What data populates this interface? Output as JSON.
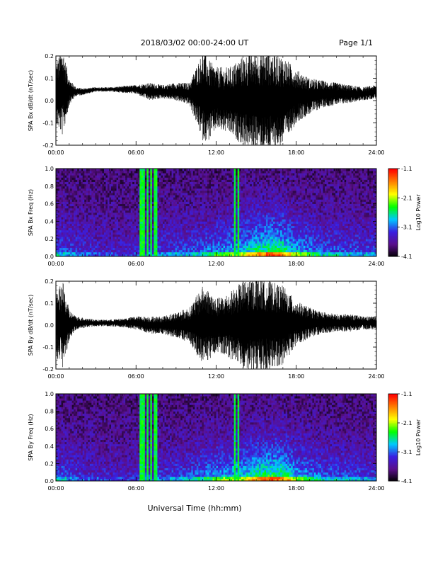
{
  "header": {
    "date_range": "2018/03/02  00:00-24:00 UT",
    "page": "Page 1/1"
  },
  "footer": {
    "xlabel": "Universal Time (hh:mm)"
  },
  "colors": {
    "trace": "#000000",
    "background": "#ffffff",
    "colormap": [
      "#000000",
      "#5a0f8a",
      "#3a1ee0",
      "#00c8ff",
      "#00ff00",
      "#ffff00",
      "#ff8000",
      "#ff0000"
    ]
  },
  "chart_data": [
    {
      "type": "line",
      "ylabel": "SPA Bx dB/dt (nT/sec)",
      "x_ticks": [
        "00:00",
        "06:00",
        "12:00",
        "18:00",
        "24:00"
      ],
      "y_ticks": [
        "-0.2",
        "-0.1",
        "0.0",
        "0.1",
        "0.2"
      ],
      "xlim": [
        0,
        24
      ],
      "ylim": [
        -0.2,
        0.2
      ],
      "series": [
        {
          "x_hours": [
            0,
            0.5,
            1,
            1.5,
            2,
            3,
            4,
            5,
            6,
            7,
            8,
            9,
            10,
            11,
            11.5,
            12,
            13,
            14,
            15,
            16,
            17,
            18,
            19,
            20,
            21,
            22,
            23,
            24
          ],
          "center": [
            0.03,
            0.04,
            0.04,
            0.04,
            0.04,
            0.05,
            0.05,
            0.05,
            0.05,
            0.04,
            0.04,
            0.04,
            0.03,
            0.02,
            0.0,
            0.01,
            0.0,
            0.0,
            0.0,
            0.0,
            0.0,
            0.02,
            0.02,
            0.03,
            0.03,
            0.03,
            0.03,
            0.04
          ],
          "amplitude": [
            0.14,
            0.2,
            0.06,
            0.02,
            0.015,
            0.01,
            0.01,
            0.015,
            0.02,
            0.04,
            0.03,
            0.04,
            0.05,
            0.2,
            0.18,
            0.14,
            0.15,
            0.2,
            0.22,
            0.22,
            0.2,
            0.12,
            0.08,
            0.06,
            0.05,
            0.04,
            0.03,
            0.03
          ]
        }
      ]
    },
    {
      "type": "heatmap",
      "ylabel": "SPA Bx Freq (Hz)",
      "x_ticks": [
        "00:00",
        "06:00",
        "12:00",
        "18:00",
        "24:00"
      ],
      "y_ticks": [
        "0.0",
        "0.2",
        "0.4",
        "0.6",
        "0.8",
        "1.0"
      ],
      "xlim": [
        0,
        24
      ],
      "ylim": [
        0,
        1.0
      ],
      "colorbar": {
        "label": "Log10 Power",
        "ticks": [
          "-1.1",
          "-2.1",
          "-3.1",
          "-4.1"
        ],
        "range": [
          -4.1,
          -1.1
        ]
      },
      "bright_bands_hours": [
        6.3,
        6.55,
        6.85,
        7.1,
        7.45,
        13.4,
        13.65
      ],
      "activity_hours": [
        0,
        2,
        4,
        6,
        8,
        10,
        11,
        12,
        13,
        14,
        15,
        16,
        17,
        18,
        19,
        20,
        22,
        24
      ],
      "activity_level": [
        0.35,
        0.2,
        0.15,
        0.15,
        0.25,
        0.3,
        0.35,
        0.45,
        0.5,
        0.6,
        0.75,
        0.85,
        0.8,
        0.55,
        0.45,
        0.35,
        0.3,
        0.25
      ]
    },
    {
      "type": "line",
      "ylabel": "SPA By dB/dt (nT/sec)",
      "x_ticks": [
        "00:00",
        "06:00",
        "12:00",
        "18:00",
        "24:00"
      ],
      "y_ticks": [
        "-0.2",
        "-0.1",
        "0.0",
        "0.1",
        "0.2"
      ],
      "xlim": [
        0,
        24
      ],
      "ylim": [
        -0.2,
        0.2
      ],
      "series": [
        {
          "x_hours": [
            0,
            0.5,
            1,
            1.5,
            2,
            3,
            4,
            5,
            6,
            7,
            8,
            9,
            10,
            11,
            11.5,
            12,
            13,
            14,
            15,
            16,
            17,
            18,
            19,
            20,
            21,
            22,
            23,
            24
          ],
          "center": [
            0.0,
            0.0,
            0.0,
            0.01,
            0.01,
            0.01,
            0.01,
            0.01,
            0.01,
            0.0,
            0.0,
            0.0,
            0.0,
            0.0,
            0.0,
            0.0,
            0.0,
            0.0,
            0.0,
            0.0,
            0.0,
            0.01,
            0.01,
            0.01,
            0.01,
            0.01,
            0.01,
            0.01
          ],
          "amplitude": [
            0.14,
            0.2,
            0.07,
            0.03,
            0.025,
            0.015,
            0.015,
            0.02,
            0.03,
            0.04,
            0.04,
            0.06,
            0.08,
            0.18,
            0.16,
            0.12,
            0.15,
            0.2,
            0.22,
            0.2,
            0.18,
            0.1,
            0.07,
            0.05,
            0.04,
            0.04,
            0.03,
            0.03
          ]
        }
      ]
    },
    {
      "type": "heatmap",
      "ylabel": "SPA By Freq (Hz)",
      "x_ticks": [
        "00:00",
        "06:00",
        "12:00",
        "18:00",
        "24:00"
      ],
      "y_ticks": [
        "0.0",
        "0.2",
        "0.4",
        "0.6",
        "0.8",
        "1.0"
      ],
      "xlim": [
        0,
        24
      ],
      "ylim": [
        0,
        1.0
      ],
      "colorbar": {
        "label": "Log10 Power",
        "ticks": [
          "-1.1",
          "-2.1",
          "-3.1",
          "-4.1"
        ],
        "range": [
          -4.1,
          -1.1
        ]
      },
      "bright_bands_hours": [
        6.3,
        6.55,
        6.85,
        7.1,
        7.45,
        13.4,
        13.65
      ],
      "activity_hours": [
        0,
        2,
        4,
        6,
        8,
        10,
        11,
        12,
        13,
        14,
        15,
        16,
        17,
        18,
        19,
        20,
        22,
        24
      ],
      "activity_level": [
        0.35,
        0.2,
        0.15,
        0.15,
        0.25,
        0.3,
        0.4,
        0.5,
        0.55,
        0.6,
        0.75,
        0.85,
        0.8,
        0.55,
        0.45,
        0.35,
        0.3,
        0.25
      ]
    }
  ]
}
